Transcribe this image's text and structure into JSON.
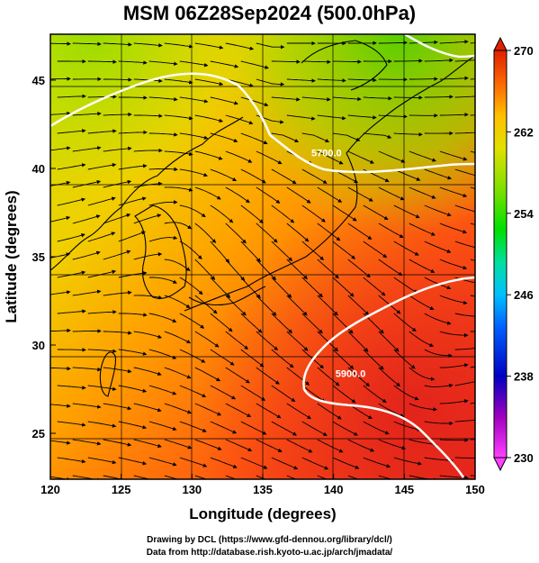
{
  "title": "MSM 06Z28Sep2024 (500.0hPa)",
  "x_axis": {
    "label": "Longitude (degrees)",
    "range": [
      120,
      150
    ],
    "ticks": [
      "120",
      "125",
      "130",
      "135",
      "140",
      "145",
      "150"
    ]
  },
  "y_axis": {
    "label": "Latitude  (degrees)",
    "range": [
      22.4,
      47.6
    ],
    "ticks": [
      "25",
      "30",
      "35",
      "40",
      "45"
    ]
  },
  "colorbar": {
    "range": [
      230,
      270
    ],
    "ticks": [
      "230",
      "238",
      "246",
      "254",
      "262",
      "270"
    ],
    "colors": [
      "#ff40ff",
      "#c000c0",
      "#0000c0",
      "#0040ff",
      "#00c0ff",
      "#00e0a0",
      "#00e000",
      "#80e000",
      "#e0e000",
      "#ffc000",
      "#ff8000",
      "#ff4000",
      "#e02000"
    ]
  },
  "contours": [
    {
      "label": "5900.0",
      "lon": 141.2,
      "lat": 28.2
    },
    {
      "label": "5700.0",
      "lon": 139.5,
      "lat": 40.7
    }
  ],
  "credits": [
    "Drawing by DCL (https://www.gfd-dennou.org/library/dcl/)",
    "Data from http://database.rish.kyoto-u.ac.jp/arch/jmadata/"
  ]
}
